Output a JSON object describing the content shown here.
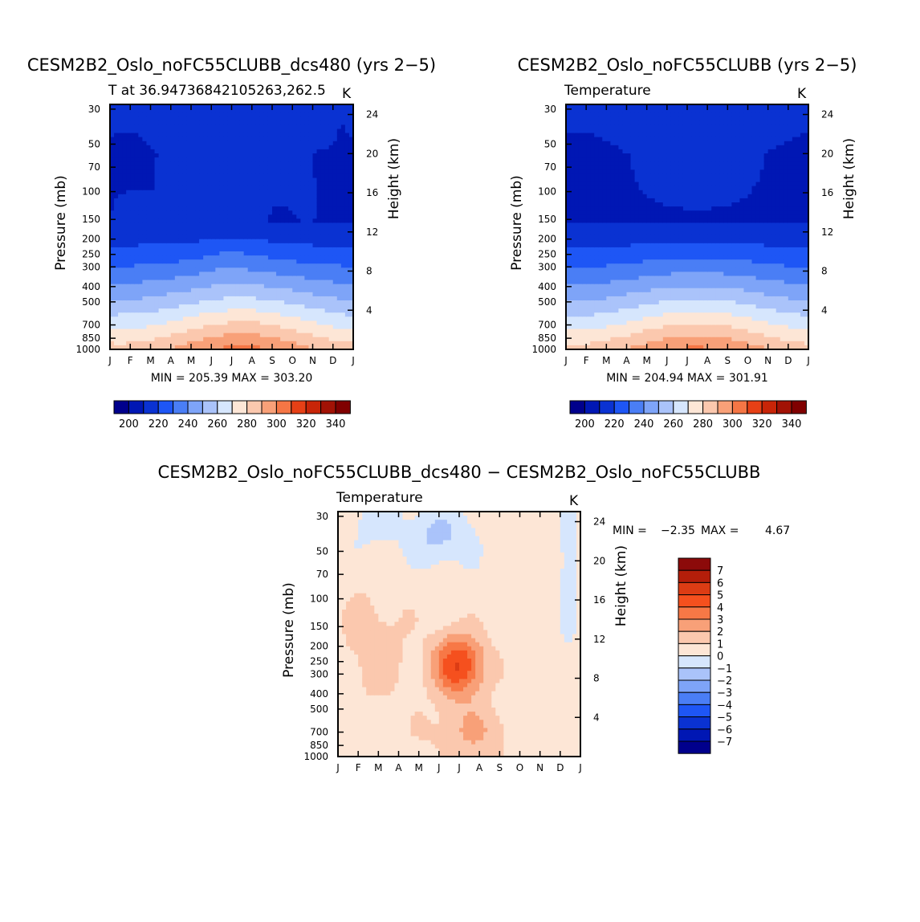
{
  "chart_data": [
    {
      "type": "heatmap",
      "panel": "top-left",
      "title": "CESM2B2_Oslo_noFC55CLUBB_dcs480 (yrs 2−5)",
      "subtitle_left": "T at 36.94736842105263,262.5",
      "subtitle_right": "K",
      "ylabel": "Pressure (mb)",
      "ylabel_right": "Height (km)",
      "x_ticks": [
        "J",
        "F",
        "M",
        "A",
        "M",
        "J",
        "J",
        "A",
        "S",
        "O",
        "N",
        "D",
        "J"
      ],
      "y_ticks": [
        "30",
        "50",
        "70",
        "100",
        "150",
        "200",
        "250",
        "300",
        "400",
        "500",
        "700",
        "850",
        "1000"
      ],
      "y_right_ticks": [
        "24",
        "20",
        "16",
        "12",
        "8",
        "4"
      ],
      "ylim": [
        1000,
        25
      ],
      "minmax": "MIN = 205.39 MAX = 303.20",
      "colorbar_labels": [
        "200",
        "220",
        "240",
        "260",
        "280",
        "300",
        "320",
        "340"
      ],
      "colorbar_colors": [
        "#00008c",
        "#0017b4",
        "#0a32d2",
        "#1e56f5",
        "#4a7ef5",
        "#7ea4f8",
        "#aac3fa",
        "#d6e6fd",
        "#fde6d6",
        "#fbc8ae",
        "#f8a078",
        "#f57645",
        "#e64016",
        "#c82508",
        "#a21205",
        "#800000"
      ],
      "field": "T_control_plus_diff"
    },
    {
      "type": "heatmap",
      "panel": "top-right",
      "title": "CESM2B2_Oslo_noFC55CLUBB (yrs 2−5)",
      "subtitle_left": "Temperature",
      "subtitle_right": "K",
      "ylabel": "Pressure (mb)",
      "ylabel_right": "Height (km)",
      "x_ticks": [
        "J",
        "F",
        "M",
        "A",
        "M",
        "J",
        "J",
        "A",
        "S",
        "O",
        "N",
        "D",
        "J"
      ],
      "y_ticks": [
        "30",
        "50",
        "70",
        "100",
        "150",
        "200",
        "250",
        "300",
        "400",
        "500",
        "700",
        "850",
        "1000"
      ],
      "y_right_ticks": [
        "24",
        "20",
        "16",
        "12",
        "8",
        "4"
      ],
      "ylim": [
        1000,
        25
      ],
      "minmax": "MIN = 204.94 MAX = 301.91",
      "colorbar_labels": [
        "200",
        "220",
        "240",
        "260",
        "280",
        "300",
        "320",
        "340"
      ],
      "colorbar_colors": [
        "#00008c",
        "#0017b4",
        "#0a32d2",
        "#1e56f5",
        "#4a7ef5",
        "#7ea4f8",
        "#aac3fa",
        "#d6e6fd",
        "#fde6d6",
        "#fbc8ae",
        "#f8a078",
        "#f57645",
        "#e64016",
        "#c82508",
        "#a21205",
        "#800000"
      ],
      "field": "T_control"
    },
    {
      "type": "heatmap",
      "panel": "bottom",
      "title": "CESM2B2_Oslo_noFC55CLUBB_dcs480 − CESM2B2_Oslo_noFC55CLUBB",
      "subtitle_left": "Temperature",
      "subtitle_right": "K",
      "ylabel": "Pressure (mb)",
      "ylabel_right": "Height (km)",
      "x_ticks": [
        "J",
        "F",
        "M",
        "A",
        "M",
        "J",
        "J",
        "A",
        "S",
        "O",
        "N",
        "D",
        "J"
      ],
      "y_ticks": [
        "30",
        "50",
        "70",
        "100",
        "150",
        "200",
        "250",
        "300",
        "400",
        "500",
        "700",
        "850",
        "1000"
      ],
      "y_right_ticks": [
        "24",
        "20",
        "16",
        "12",
        "8",
        "4"
      ],
      "ylim": [
        1000,
        25
      ],
      "minmax_label": "MIN =",
      "minmax_min": "−2.35",
      "minmax_max_label": "MAX =",
      "minmax_max": "4.67",
      "colorbar_labels": [
        "7",
        "6",
        "5",
        "4",
        "3",
        "2",
        "1",
        "0",
        "−1",
        "−2",
        "−3",
        "−4",
        "−5",
        "−6",
        "−7"
      ],
      "colorbar_colors": [
        "#8c0a0a",
        "#b41e0a",
        "#dc3c14",
        "#f5501e",
        "#f77846",
        "#f8a078",
        "#fbc8ae",
        "#fde6d6",
        "#d6e6fd",
        "#aac3fa",
        "#7ea4f8",
        "#4a7ef5",
        "#1e56f5",
        "#0a32d2",
        "#0017b4",
        "#00008c"
      ],
      "field": "T_diff"
    }
  ]
}
